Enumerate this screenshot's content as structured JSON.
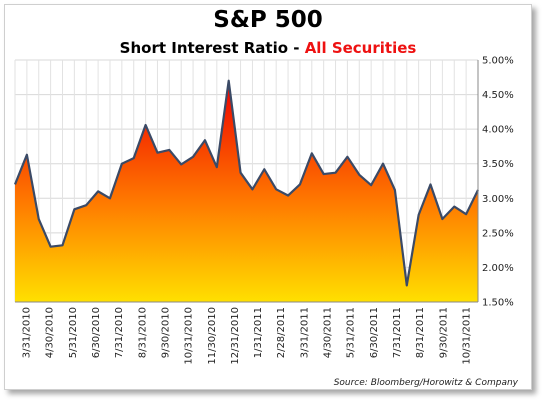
{
  "chart_data": {
    "type": "area",
    "title": "S&P 500",
    "subtitle": {
      "main": "Short Interest Ratio",
      "separator": " - ",
      "highlight": "All Securities",
      "highlight_color": "#ee1111"
    },
    "source": "Source: Bloomberg/Horowitz & Company",
    "xlabel": "",
    "ylabel": "",
    "ylim": [
      1.5,
      5.0
    ],
    "yaxis_position": "right",
    "yticks": [
      1.5,
      2.0,
      2.5,
      3.0,
      3.5,
      4.0,
      4.5,
      5.0
    ],
    "ytick_labels": [
      "1.50%",
      "2.00%",
      "2.50%",
      "3.00%",
      "3.50%",
      "4.00%",
      "4.50%",
      "5.00%"
    ],
    "xtick_labels": [
      "3/31/2010",
      "4/30/2010",
      "5/31/2010",
      "6/30/2010",
      "7/31/2010",
      "8/31/2010",
      "9/30/2010",
      "10/31/2010",
      "11/30/2010",
      "12/31/2010",
      "1/31/2011",
      "2/28/2011",
      "3/31/2011",
      "4/30/2011",
      "5/31/2011",
      "6/30/2011",
      "7/31/2011",
      "8/31/2011",
      "9/30/2011",
      "10/31/2011"
    ],
    "grid": true,
    "legend": "none",
    "fill_gradient": [
      "#ee0000",
      "#ff7a00",
      "#ffe000"
    ],
    "line_color": "#3b4a66",
    "series": [
      {
        "values": [
          3.2,
          3.63,
          2.7,
          2.3,
          2.32,
          2.84,
          2.9,
          3.1,
          3.0,
          3.5,
          3.58,
          4.06,
          3.66,
          3.7,
          3.49,
          3.6,
          3.84,
          3.45,
          4.7,
          3.37,
          3.13,
          3.42,
          3.13,
          3.04,
          3.2,
          3.65,
          3.35,
          3.37,
          3.6,
          3.34,
          3.19,
          3.5,
          3.12,
          1.74,
          2.76,
          3.2,
          2.7,
          2.88,
          2.77,
          3.12
        ]
      }
    ]
  }
}
